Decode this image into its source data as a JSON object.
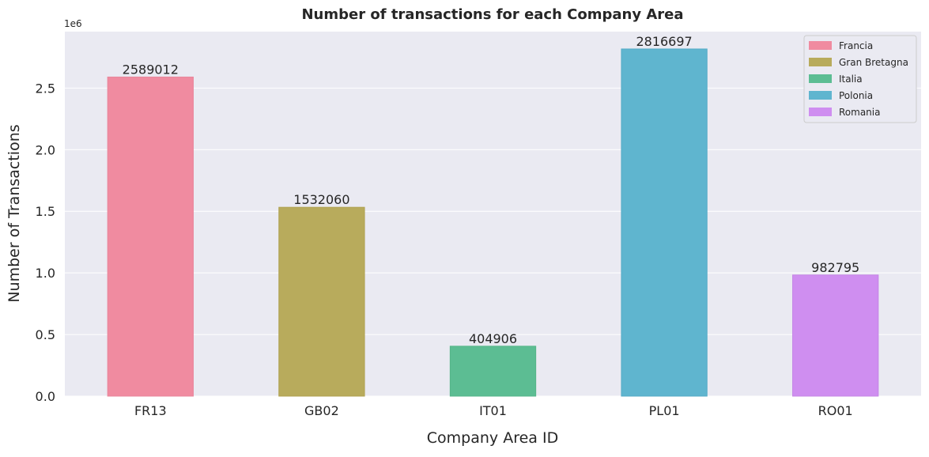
{
  "chart_data": {
    "type": "bar",
    "title": "Number of transactions for each Company Area",
    "xlabel": "Company Area ID",
    "ylabel": "Number of Transactions",
    "y_offset_label": "1e6",
    "categories": [
      "FR13",
      "GB02",
      "IT01",
      "PL01",
      "RO01"
    ],
    "values": [
      2589012,
      1532060,
      404906,
      2816697,
      982795
    ],
    "value_labels": [
      "2589012",
      "1532060",
      "404906",
      "2816697",
      "982795"
    ],
    "ylim": [
      0,
      2957532
    ],
    "y_ticks": [
      0,
      500000,
      1000000,
      1500000,
      2000000,
      2500000
    ],
    "y_tick_labels": [
      "0.0",
      "0.5",
      "1.0",
      "1.5",
      "2.0",
      "2.5"
    ],
    "grid": true,
    "legend_position": "top-right",
    "legend": [
      {
        "label": "Francia",
        "color": "#f08ba0"
      },
      {
        "label": "Gran Bretagna",
        "color": "#b8ab5c"
      },
      {
        "label": "Italia",
        "color": "#5cbd93"
      },
      {
        "label": "Polonia",
        "color": "#5fb5cf"
      },
      {
        "label": "Romania",
        "color": "#cf8ef0"
      }
    ],
    "colors": [
      "#f08ba0",
      "#b8ab5c",
      "#5cbd93",
      "#5fb5cf",
      "#cf8ef0"
    ],
    "edge_colors": [
      "#e8869b",
      "#b0a251",
      "#55b588",
      "#55abc6",
      "#c585e6"
    ],
    "plot_background": "#eaeaf2"
  }
}
